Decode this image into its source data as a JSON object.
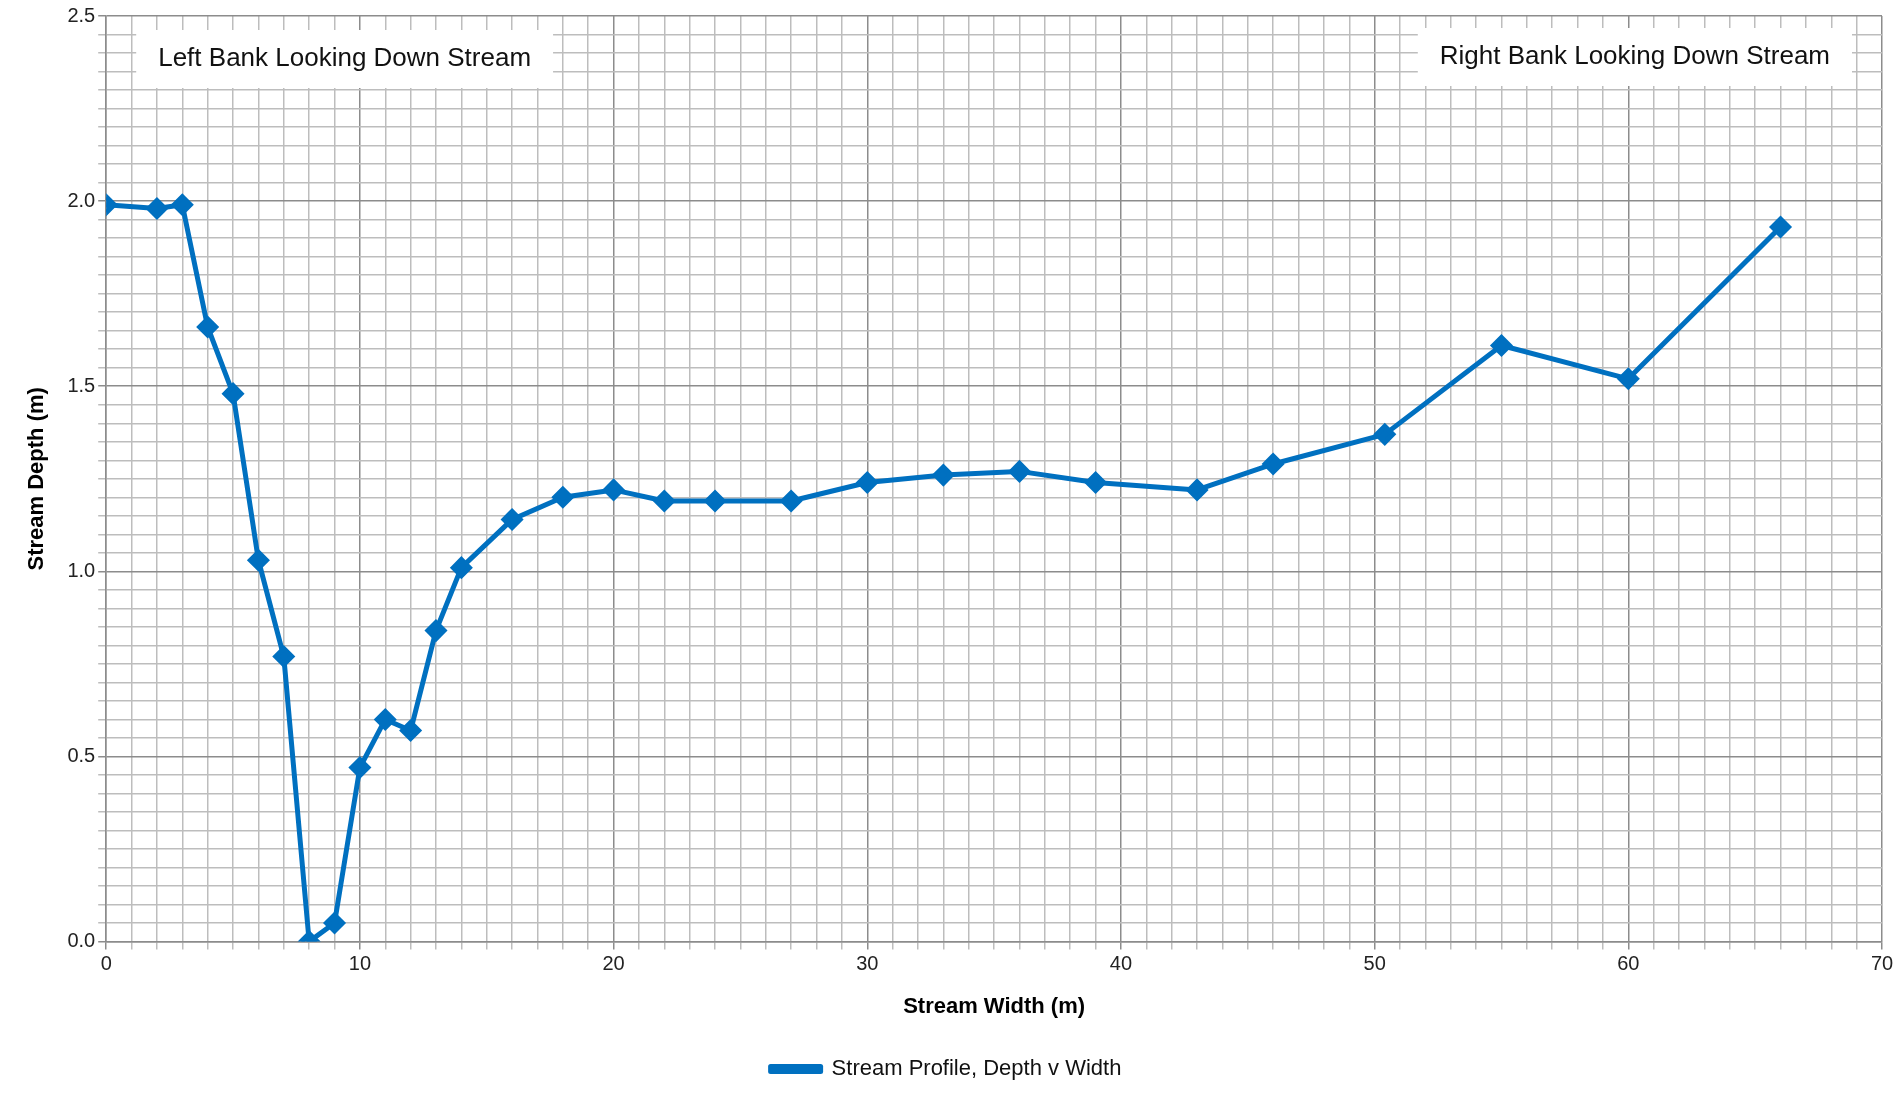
{
  "chart_data": {
    "type": "line",
    "xlabel": "Stream Width (m)",
    "ylabel": "Stream Depth (m)",
    "annotations": [
      "Left Bank Looking Down Stream",
      "Right Bank Looking Down Stream"
    ],
    "x": [
      0,
      2,
      3,
      4,
      5,
      6,
      7,
      8,
      9,
      10,
      11,
      12,
      13,
      14,
      16,
      18,
      20,
      22,
      24,
      27,
      30,
      33,
      36,
      39,
      43,
      46,
      50.4,
      55,
      60,
      66
    ],
    "series": [
      {
        "name": "Stream Profile, Depth v Width",
        "color": "#0070c0",
        "values": [
          1.99,
          1.98,
          1.99,
          1.66,
          1.48,
          1.03,
          0.77,
          0.0,
          0.05,
          0.47,
          0.6,
          0.57,
          0.84,
          1.01,
          1.14,
          1.2,
          1.22,
          1.19,
          1.19,
          1.19,
          1.24,
          1.26,
          1.27,
          1.24,
          1.22,
          1.29,
          1.37,
          1.61,
          1.52,
          1.93
        ]
      }
    ],
    "xlim": [
      0,
      70
    ],
    "xticks": [
      0,
      {
        "value": 1,
        "label": null
      },
      {
        "value": 2,
        "label": null
      },
      {
        "value": 3,
        "label": null
      },
      {
        "value": 4,
        "label": null
      },
      {
        "value": 5,
        "label": null
      },
      {
        "value": 6,
        "label": null
      },
      {
        "value": 7,
        "label": null
      },
      {
        "value": 8,
        "label": null
      },
      {
        "value": 9,
        "label": null
      },
      10,
      {
        "value": 11,
        "label": null
      },
      {
        "value": 12,
        "label": null
      },
      {
        "value": 13,
        "label": null
      },
      {
        "value": 14,
        "label": null
      },
      {
        "value": 15,
        "label": null
      },
      {
        "value": 16,
        "label": null
      },
      {
        "value": 17,
        "label": null
      },
      {
        "value": 18,
        "label": null
      },
      {
        "value": 19,
        "label": null
      },
      20,
      {
        "value": 21,
        "label": null
      },
      {
        "value": 22,
        "label": null
      },
      {
        "value": 23,
        "label": null
      },
      {
        "value": 24,
        "label": null
      },
      {
        "value": 25,
        "label": null
      },
      {
        "value": 26,
        "label": null
      },
      {
        "value": 27,
        "label": null
      },
      {
        "value": 28,
        "label": null
      },
      {
        "value": 29,
        "label": null
      },
      30,
      {
        "value": 31,
        "label": null
      },
      {
        "value": 32,
        "label": null
      },
      {
        "value": 33,
        "label": null
      },
      {
        "value": 34,
        "label": null
      },
      {
        "value": 35,
        "label": null
      },
      {
        "value": 36,
        "label": null
      },
      {
        "value": 37,
        "label": null
      },
      {
        "value": 38,
        "label": null
      },
      {
        "value": 39,
        "label": null
      },
      40,
      {
        "value": 41,
        "label": null
      },
      {
        "value": 42,
        "label": null
      },
      {
        "value": 43,
        "label": null
      },
      {
        "value": 44,
        "label": null
      },
      {
        "value": 45,
        "label": null
      },
      {
        "value": 46,
        "label": null
      },
      {
        "value": 47,
        "label": null
      },
      {
        "value": 48,
        "label": null
      },
      {
        "value": 49,
        "label": null
      },
      50,
      {
        "value": 51,
        "label": null
      },
      {
        "value": 52,
        "label": null
      },
      {
        "value": 53,
        "label": null
      },
      {
        "value": 54,
        "label": null
      },
      {
        "value": 55,
        "label": null
      },
      {
        "value": 56,
        "label": null
      },
      {
        "value": 57,
        "label": null
      },
      {
        "value": 58,
        "label": null
      },
      {
        "value": 59,
        "label": null
      },
      60,
      {
        "value": 61,
        "label": null
      },
      {
        "value": 62,
        "label": null
      },
      {
        "value": 63,
        "label": null
      },
      {
        "value": 64,
        "label": null
      },
      {
        "value": 65,
        "label": null
      },
      {
        "value": 66,
        "label": null
      },
      {
        "value": 67,
        "label": null
      },
      {
        "value": 68,
        "label": null
      },
      {
        "value": 69,
        "label": null
      },
      70
    ],
    "ylim": [
      0,
      2.5
    ],
    "yticks": [
      {
        "value": 0,
        "label": "0.0"
      },
      {
        "value": 0.05,
        "label": null
      },
      {
        "value": 0.1,
        "label": null
      },
      {
        "value": 0.15,
        "label": null
      },
      {
        "value": 0.2,
        "label": null
      },
      {
        "value": 0.25,
        "label": null
      },
      {
        "value": 0.3,
        "label": null
      },
      {
        "value": 0.35,
        "label": null
      },
      {
        "value": 0.4,
        "label": null
      },
      {
        "value": 0.45,
        "label": null
      },
      {
        "value": 0.5,
        "label": "0.5"
      },
      {
        "value": 0.55,
        "label": null
      },
      {
        "value": 0.6,
        "label": null
      },
      {
        "value": 0.65,
        "label": null
      },
      {
        "value": 0.7,
        "label": null
      },
      {
        "value": 0.75,
        "label": null
      },
      {
        "value": 0.8,
        "label": null
      },
      {
        "value": 0.85,
        "label": null
      },
      {
        "value": 0.9,
        "label": null
      },
      {
        "value": 0.95,
        "label": null
      },
      {
        "value": 1,
        "label": "1.0"
      },
      {
        "value": 1.05,
        "label": null
      },
      {
        "value": 1.1,
        "label": null
      },
      {
        "value": 1.15,
        "label": null
      },
      {
        "value": 1.2,
        "label": null
      },
      {
        "value": 1.25,
        "label": null
      },
      {
        "value": 1.3,
        "label": null
      },
      {
        "value": 1.35,
        "label": null
      },
      {
        "value": 1.4,
        "label": null
      },
      {
        "value": 1.45,
        "label": null
      },
      {
        "value": 1.5,
        "label": "1.5"
      },
      {
        "value": 1.55,
        "label": null
      },
      {
        "value": 1.6,
        "label": null
      },
      {
        "value": 1.65,
        "label": null
      },
      {
        "value": 1.7,
        "label": null
      },
      {
        "value": 1.75,
        "label": null
      },
      {
        "value": 1.8,
        "label": null
      },
      {
        "value": 1.85,
        "label": null
      },
      {
        "value": 1.9,
        "label": null
      },
      {
        "value": 1.95,
        "label": null
      },
      {
        "value": 2,
        "label": "2.0"
      },
      {
        "value": 2.05,
        "label": null
      },
      {
        "value": 2.1,
        "label": null
      },
      {
        "value": 2.15,
        "label": null
      },
      {
        "value": 2.2,
        "label": null
      },
      {
        "value": 2.25,
        "label": null
      },
      {
        "value": 2.3,
        "label": null
      },
      {
        "value": 2.35,
        "label": null
      },
      {
        "value": 2.4,
        "label": null
      },
      {
        "value": 2.45,
        "label": null
      },
      {
        "value": 2.5,
        "label": "2.5"
      }
    ],
    "grid": true,
    "legend": "bottom",
    "marker": "diamond",
    "line_style": "solid"
  }
}
